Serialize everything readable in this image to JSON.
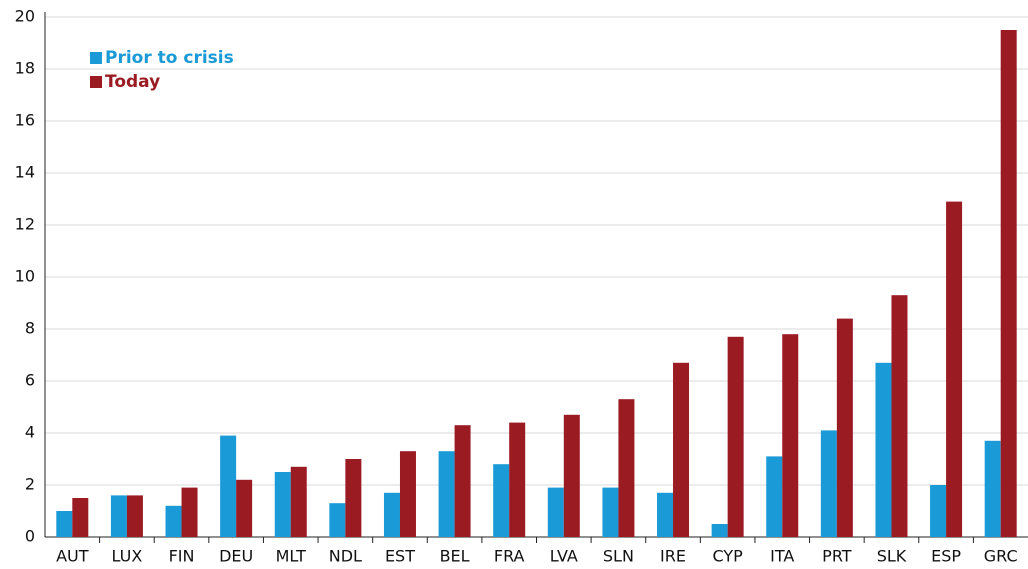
{
  "chart_data": {
    "type": "bar",
    "categories": [
      "AUT",
      "LUX",
      "FIN",
      "DEU",
      "MLT",
      "NDL",
      "EST",
      "BEL",
      "FRA",
      "LVA",
      "SLN",
      "IRE",
      "CYP",
      "ITA",
      "PRT",
      "SLK",
      "ESP",
      "GRC"
    ],
    "series": [
      {
        "name": "Prior to crisis",
        "color": "#1a9ad6",
        "values": [
          1.0,
          1.6,
          1.2,
          3.9,
          2.5,
          1.3,
          1.7,
          3.3,
          2.8,
          1.9,
          1.9,
          1.7,
          0.5,
          3.1,
          4.1,
          6.7,
          2.0,
          3.7
        ]
      },
      {
        "name": "Today",
        "color": "#9b1b23",
        "values": [
          1.5,
          1.6,
          1.9,
          2.2,
          2.7,
          3.0,
          3.3,
          4.3,
          4.4,
          4.7,
          5.3,
          6.7,
          7.7,
          7.8,
          8.4,
          9.3,
          12.9,
          19.5
        ]
      }
    ],
    "ylim": [
      0,
      20
    ],
    "yticks": [
      0,
      2,
      4,
      6,
      8,
      10,
      12,
      14,
      16,
      18,
      20
    ],
    "grid": true,
    "legend": "top-left"
  }
}
